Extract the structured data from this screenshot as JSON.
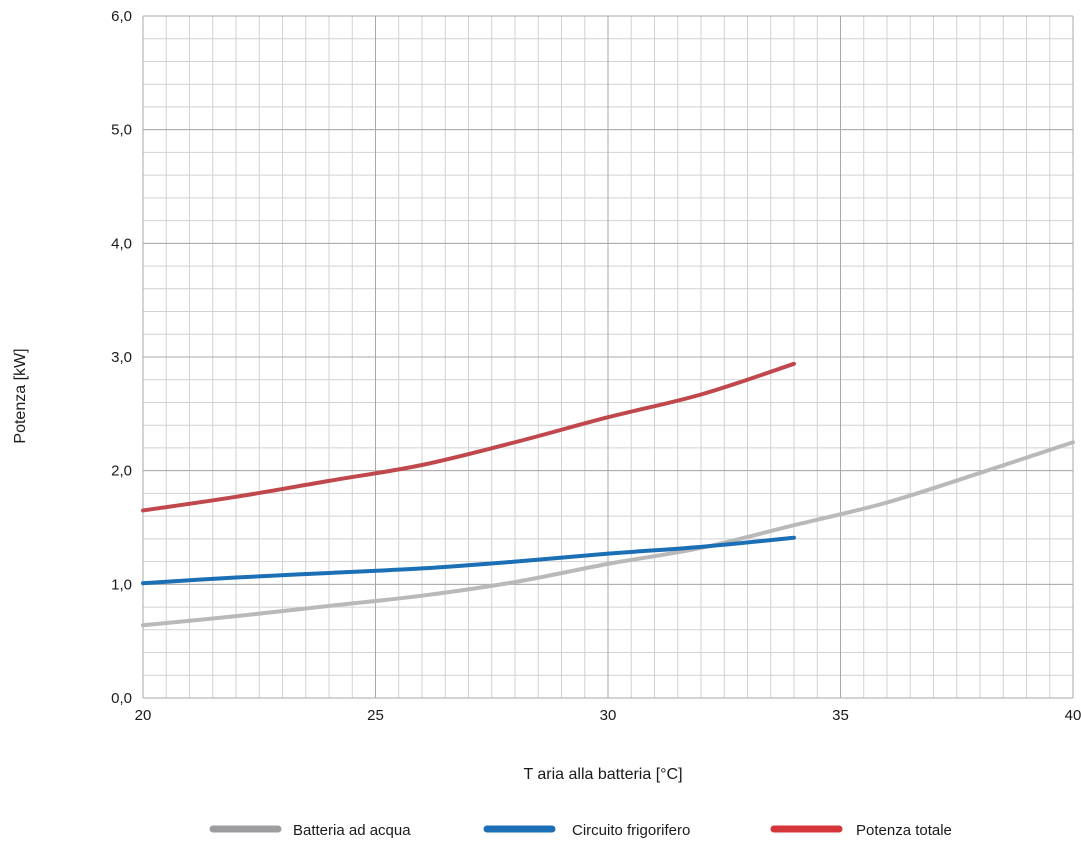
{
  "chart_data": {
    "type": "line",
    "xlabel": "T aria alla batteria [°C]",
    "ylabel": "Potenza  [kW]",
    "xlim": [
      20,
      40
    ],
    "ylim": [
      0,
      6
    ],
    "x_ticks": [
      20,
      25,
      30,
      35,
      40
    ],
    "x_tick_labels": [
      "20",
      "25",
      "30",
      "35",
      "40"
    ],
    "y_ticks": [
      0,
      1,
      2,
      3,
      4,
      5,
      6
    ],
    "y_tick_labels": [
      "0,0",
      "1,0",
      "2,0",
      "3,0",
      "4,0",
      "5,0",
      "6,0"
    ],
    "grid": true,
    "legend_position": "bottom",
    "series": [
      {
        "name": "Batteria ad acqua",
        "color": "#b9b9b9",
        "legend_color": "#9d9d9f",
        "x": [
          20,
          22,
          24,
          26,
          28,
          30,
          32,
          34,
          36,
          38,
          40
        ],
        "y": [
          0.64,
          0.72,
          0.81,
          0.9,
          1.02,
          1.18,
          1.32,
          1.52,
          1.72,
          1.98,
          2.25
        ]
      },
      {
        "name": "Circuito frigorifero",
        "color": "#1b6fb4",
        "legend_color": "#1b6fb4",
        "x": [
          20,
          22,
          24,
          26,
          28,
          30,
          32,
          34
        ],
        "y": [
          1.01,
          1.06,
          1.1,
          1.14,
          1.2,
          1.27,
          1.33,
          1.41
        ]
      },
      {
        "name": "Potenza totale",
        "color": "#c0484c",
        "legend_color": "#d6343b",
        "x": [
          20,
          22,
          24,
          26,
          28,
          30,
          32,
          34
        ],
        "y": [
          1.65,
          1.77,
          1.91,
          2.05,
          2.25,
          2.47,
          2.67,
          2.94
        ]
      }
    ]
  }
}
